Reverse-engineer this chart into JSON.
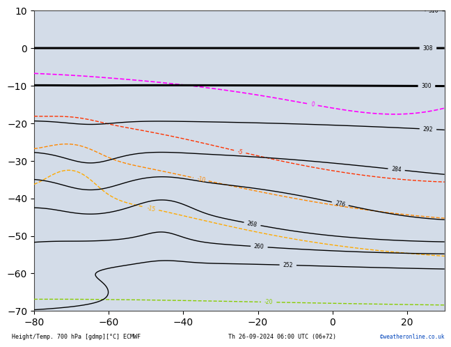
{
  "title_left": "Height/Temp. 700 hPa [gdmp][°C] ECMWF",
  "title_right": "Th 26-09-2024 06:00 UTC (06+72)",
  "watermark": "©weatheronline.co.uk",
  "bg_ocean": "#d3dce8",
  "bg_land": "#b8d89c",
  "bg_antarctica": "#c8c8c8",
  "grid_color": "#999999",
  "coastline_color": "#666666",
  "figsize": [
    6.34,
    4.9
  ],
  "dpi": 100,
  "lon_min": -80,
  "lon_max": 30,
  "lat_min": -70,
  "lat_max": 10,
  "geo_color": "#000000",
  "geo_levels": [
    252,
    260,
    268,
    276,
    284,
    292,
    300,
    308,
    316
  ],
  "geo_thick_levels": [
    300,
    308
  ],
  "geo_lw_thin": 1.0,
  "geo_lw_thick": 2.2,
  "temp_configs": [
    [
      0,
      "#ff00ff",
      1.2
    ],
    [
      -5,
      "#ff3300",
      1.0
    ],
    [
      -10,
      "#ff8800",
      1.0
    ],
    [
      -15,
      "#ffaa00",
      1.0
    ],
    [
      -20,
      "#88cc00",
      1.0
    ]
  ]
}
